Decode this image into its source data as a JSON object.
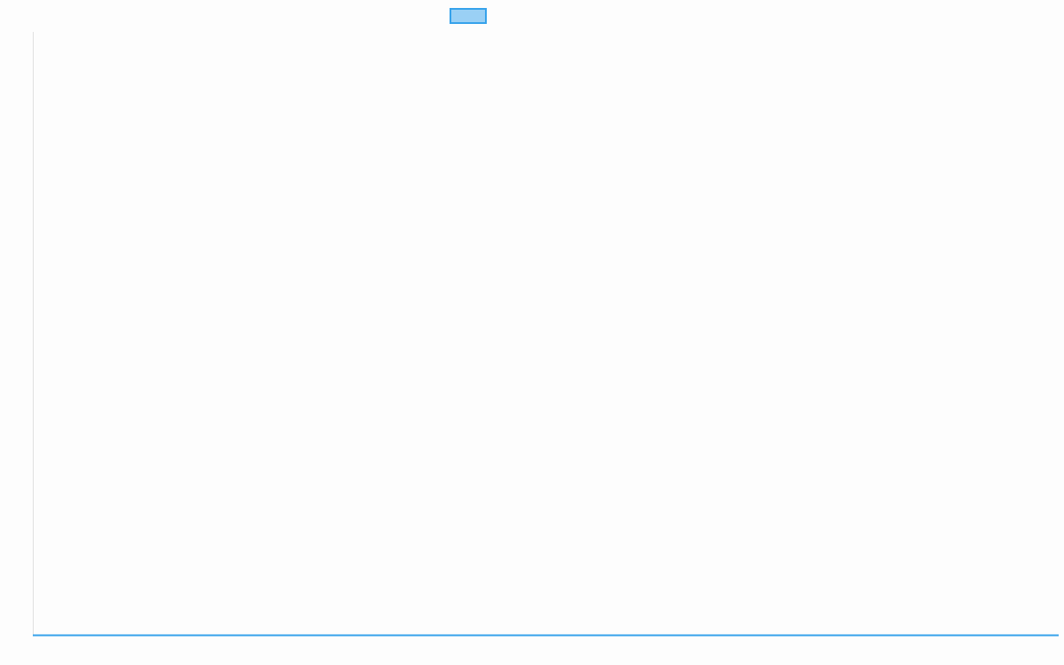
{
  "chart_data": {
    "type": "line",
    "title": "",
    "xlabel": "",
    "ylabel": "",
    "categories": [],
    "series": [
      {
        "color": "#36a2eb",
        "fill_color": "#9ad0f5",
        "values": []
      }
    ],
    "legend": {
      "placement": "top",
      "label": ""
    },
    "grid": false
  }
}
